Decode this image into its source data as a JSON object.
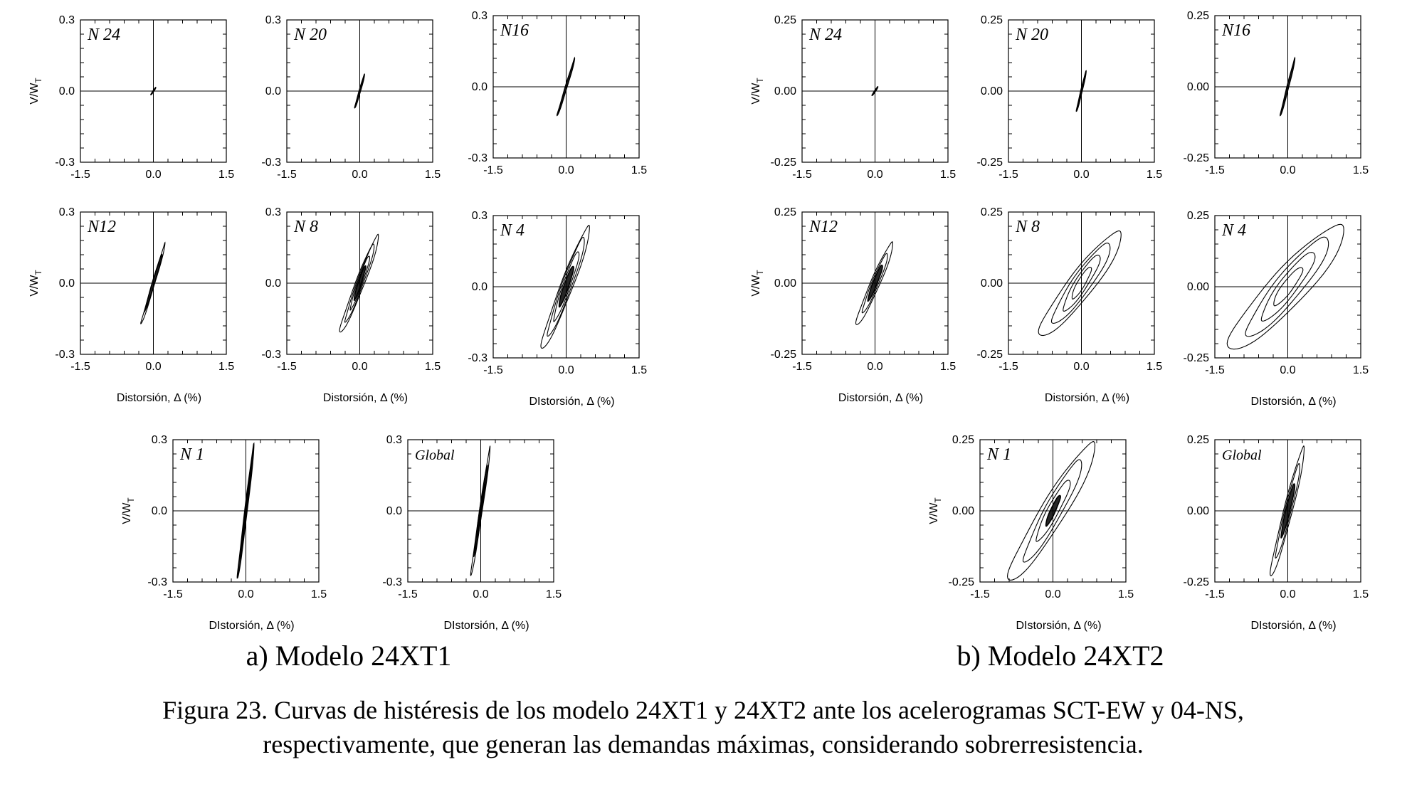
{
  "caption": {
    "line1": "Figura 23. Curvas de histéresis de los modelo 24XT1 y 24XT2 ante los acelerogramas SCT-EW y 04-NS,",
    "line2": "respectivamente, que generan las demandas máximas, considerando sobrerresistencia."
  },
  "models": [
    {
      "caption": "a) Modelo 24XT1",
      "y_tick_labels": [
        "0.3",
        "0.0",
        "-0.3"
      ],
      "x_tick_labels": [
        "-1.5",
        "0.0",
        "1.5"
      ],
      "ylabel": "V/W",
      "ylabel_sub": "T",
      "xlabels": [
        "Distorsión, Δ (%)",
        "Distorsión, Δ (%)",
        "DIstorsión, Δ (%)",
        "DIstorsión, Δ (%)",
        "DIstorsión, Δ (%)"
      ]
    },
    {
      "caption": "b) Modelo 24XT2",
      "y_tick_labels": [
        "0.25",
        "0.00",
        "-0.25"
      ],
      "x_tick_labels": [
        "-1.5",
        "0.0",
        "1.5"
      ],
      "ylabel": "V/W",
      "ylabel_sub": "T",
      "xlabels": [
        "Distorsión, Δ (%)",
        "Distorsión, Δ (%)",
        "DIstorsión, Δ (%)",
        "DIstorsión, Δ (%)",
        "DIstorsión, Δ (%)"
      ]
    }
  ],
  "chart_data": [
    {
      "type": "line",
      "model": "24XT1",
      "panel_label": "N 24",
      "xlim": [
        -1.5,
        1.5
      ],
      "ylim": [
        -0.3,
        0.3
      ],
      "loops": [
        {
          "dmax": 0.05,
          "vmax": 0.015,
          "open": 0.003
        }
      ]
    },
    {
      "type": "line",
      "model": "24XT1",
      "panel_label": "N 20",
      "xlim": [
        -1.5,
        1.5
      ],
      "ylim": [
        -0.3,
        0.3
      ],
      "loops": [
        {
          "dmax": 0.1,
          "vmax": 0.07,
          "open": 0.01
        }
      ]
    },
    {
      "type": "line",
      "model": "24XT1",
      "panel_label": "N16",
      "xlim": [
        -1.5,
        1.5
      ],
      "ylim": [
        -0.3,
        0.3
      ],
      "loops": [
        {
          "dmax": 0.18,
          "vmax": 0.12,
          "open": 0.012
        }
      ]
    },
    {
      "type": "line",
      "model": "24XT1",
      "panel_label": "N12",
      "xlim": [
        -1.5,
        1.5
      ],
      "ylim": [
        -0.3,
        0.3
      ],
      "loops": [
        {
          "dmax": 0.25,
          "vmax": 0.17,
          "open": 0.02
        },
        {
          "dmax": 0.18,
          "vmax": 0.12,
          "open": 0.015
        }
      ]
    },
    {
      "type": "line",
      "model": "24XT1",
      "panel_label": "N 8",
      "xlim": [
        -1.5,
        1.5
      ],
      "ylim": [
        -0.3,
        0.3
      ],
      "loops": [
        {
          "dmax": 0.4,
          "vmax": 0.2,
          "open": 0.05
        },
        {
          "dmax": 0.3,
          "vmax": 0.16,
          "open": 0.04
        },
        {
          "dmax": 0.2,
          "vmax": 0.11,
          "open": 0.03
        },
        {
          "dmax": 0.12,
          "vmax": 0.07,
          "open": 0.02
        }
      ]
    },
    {
      "type": "line",
      "model": "24XT1",
      "panel_label": "N 4",
      "xlim": [
        -1.5,
        1.5
      ],
      "ylim": [
        -0.3,
        0.3
      ],
      "loops": [
        {
          "dmax": 0.5,
          "vmax": 0.25,
          "open": 0.07
        },
        {
          "dmax": 0.38,
          "vmax": 0.2,
          "open": 0.06
        },
        {
          "dmax": 0.26,
          "vmax": 0.14,
          "open": 0.045
        },
        {
          "dmax": 0.15,
          "vmax": 0.08,
          "open": 0.03
        }
      ]
    },
    {
      "type": "line",
      "model": "24XT1",
      "panel_label": "N 1",
      "xlim": [
        -1.5,
        1.5
      ],
      "ylim": [
        -0.3,
        0.3
      ],
      "loops": [
        {
          "dmax": 0.17,
          "vmax": 0.28,
          "open": 0.04
        },
        {
          "dmax": 0.12,
          "vmax": 0.2,
          "open": 0.03
        },
        {
          "dmax": 0.07,
          "vmax": 0.12,
          "open": 0.02
        }
      ]
    },
    {
      "type": "line",
      "model": "24XT1",
      "panel_label": "Global",
      "xlim": [
        -1.5,
        1.5
      ],
      "ylim": [
        -0.3,
        0.3
      ],
      "loops": [
        {
          "dmax": 0.2,
          "vmax": 0.27,
          "open": 0.04
        },
        {
          "dmax": 0.14,
          "vmax": 0.19,
          "open": 0.03
        },
        {
          "dmax": 0.08,
          "vmax": 0.11,
          "open": 0.02
        }
      ]
    },
    {
      "type": "line",
      "model": "24XT2",
      "panel_label": "N 24",
      "xlim": [
        -1.5,
        1.5
      ],
      "ylim": [
        -0.25,
        0.25
      ],
      "loops": [
        {
          "dmax": 0.06,
          "vmax": 0.015,
          "open": 0.003
        }
      ]
    },
    {
      "type": "line",
      "model": "24XT2",
      "panel_label": "N 20",
      "xlim": [
        -1.5,
        1.5
      ],
      "ylim": [
        -0.25,
        0.25
      ],
      "loops": [
        {
          "dmax": 0.1,
          "vmax": 0.07,
          "open": 0.01
        }
      ]
    },
    {
      "type": "line",
      "model": "24XT2",
      "panel_label": "N16",
      "xlim": [
        -1.5,
        1.5
      ],
      "ylim": [
        -0.25,
        0.25
      ],
      "loops": [
        {
          "dmax": 0.15,
          "vmax": 0.1,
          "open": 0.012
        }
      ]
    },
    {
      "type": "line",
      "model": "24XT2",
      "panel_label": "N12",
      "xlim": [
        -1.5,
        1.5
      ],
      "ylim": [
        -0.25,
        0.25
      ],
      "loops": [
        {
          "dmax": 0.38,
          "vmax": 0.14,
          "open": 0.04
        },
        {
          "dmax": 0.26,
          "vmax": 0.1,
          "open": 0.03
        },
        {
          "dmax": 0.15,
          "vmax": 0.06,
          "open": 0.02
        }
      ]
    },
    {
      "type": "line",
      "model": "24XT2",
      "panel_label": "N 8",
      "xlim": [
        -1.5,
        1.5
      ],
      "ylim": [
        -0.25,
        0.25
      ],
      "loops": [
        {
          "dmax": 0.85,
          "vmax": 0.17,
          "open": 0.07
        },
        {
          "dmax": 0.6,
          "vmax": 0.13,
          "open": 0.055
        },
        {
          "dmax": 0.38,
          "vmax": 0.09,
          "open": 0.04
        },
        {
          "dmax": 0.2,
          "vmax": 0.05,
          "open": 0.025
        }
      ]
    },
    {
      "type": "line",
      "model": "24XT2",
      "panel_label": "N 4",
      "xlim": [
        -1.5,
        1.5
      ],
      "ylim": [
        -0.25,
        0.25
      ],
      "loops": [
        {
          "dmax": 1.2,
          "vmax": 0.2,
          "open": 0.09
        },
        {
          "dmax": 0.85,
          "vmax": 0.16,
          "open": 0.07
        },
        {
          "dmax": 0.55,
          "vmax": 0.11,
          "open": 0.05
        },
        {
          "dmax": 0.3,
          "vmax": 0.06,
          "open": 0.03
        }
      ]
    },
    {
      "type": "line",
      "model": "24XT2",
      "panel_label": "N 1",
      "xlim": [
        -1.5,
        1.5
      ],
      "ylim": [
        -0.25,
        0.25
      ],
      "loops": [
        {
          "dmax": 0.9,
          "vmax": 0.23,
          "open": 0.08
        },
        {
          "dmax": 0.6,
          "vmax": 0.17,
          "open": 0.06
        },
        {
          "dmax": 0.35,
          "vmax": 0.1,
          "open": 0.04
        },
        {
          "dmax": 0.15,
          "vmax": 0.05,
          "open": 0.02
        }
      ]
    },
    {
      "type": "line",
      "model": "24XT2",
      "panel_label": "Global",
      "xlim": [
        -1.5,
        1.5
      ],
      "ylim": [
        -0.25,
        0.25
      ],
      "loops": [
        {
          "dmax": 0.35,
          "vmax": 0.22,
          "open": 0.06
        },
        {
          "dmax": 0.25,
          "vmax": 0.16,
          "open": 0.045
        },
        {
          "dmax": 0.14,
          "vmax": 0.09,
          "open": 0.03
        }
      ]
    }
  ]
}
